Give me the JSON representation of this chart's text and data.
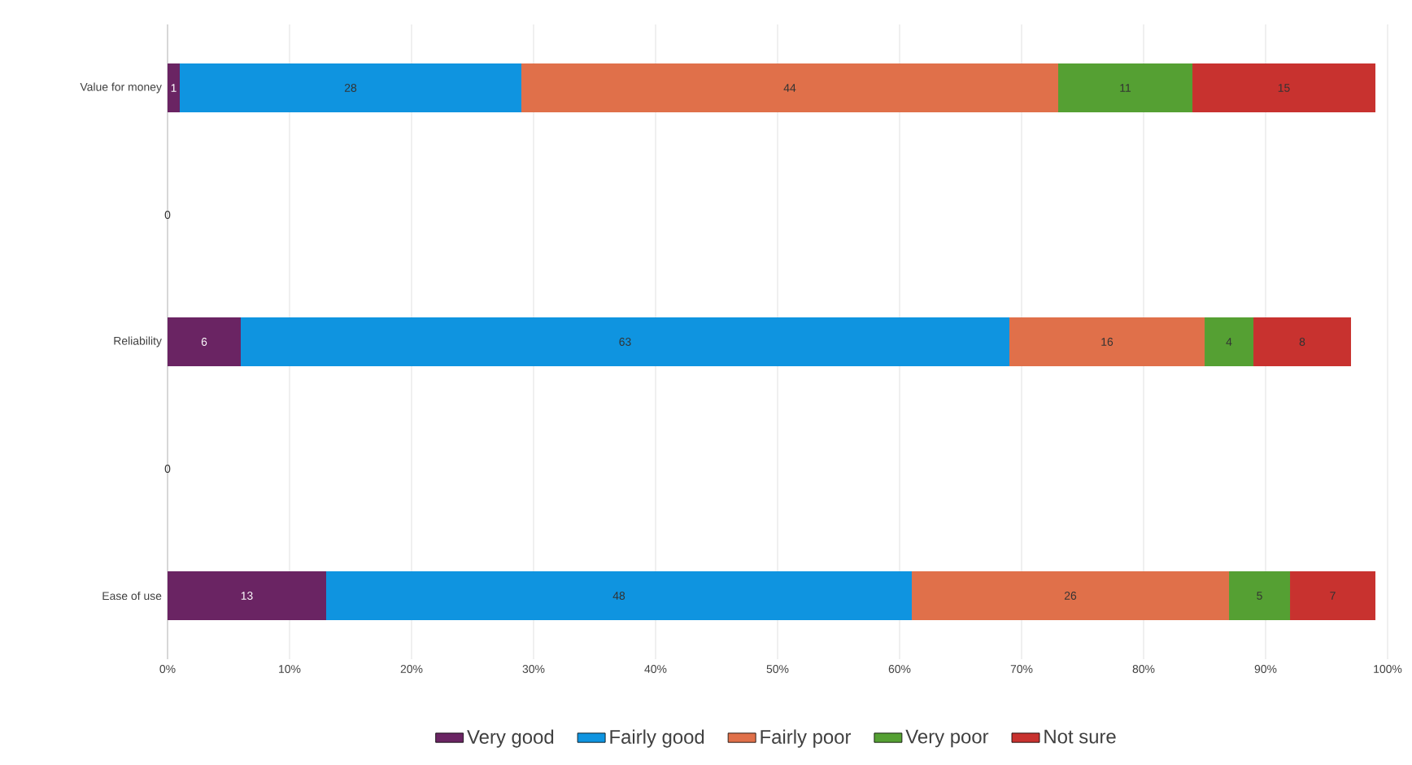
{
  "chart_data": {
    "type": "bar",
    "orientation": "horizontal",
    "stacked": true,
    "categories": [
      "Value for money",
      null,
      "Reliability",
      null,
      "Ease of use"
    ],
    "series": [
      {
        "name": "Very good",
        "color": "#6a2463",
        "values": [
          1,
          0,
          6,
          0,
          13
        ],
        "value_labels": [
          "1",
          "0",
          "6",
          "0",
          "13"
        ]
      },
      {
        "name": "Fairly good",
        "color": "#0f94e0",
        "values": [
          28,
          0,
          63,
          0,
          48
        ],
        "value_labels": [
          "28",
          null,
          "63",
          null,
          "48"
        ]
      },
      {
        "name": "Fairly poor",
        "color": "#e0704a",
        "values": [
          44,
          0,
          16,
          0,
          26
        ],
        "value_labels": [
          "44",
          null,
          "16",
          null,
          "26"
        ]
      },
      {
        "name": "Very poor",
        "color": "#55a033",
        "values": [
          11,
          0,
          4,
          0,
          5
        ],
        "value_labels": [
          "11",
          null,
          "4",
          null,
          "5"
        ]
      },
      {
        "name": "Not sure",
        "color": "#c8322f",
        "values": [
          15,
          0,
          8,
          0,
          7
        ],
        "value_labels": [
          "15",
          null,
          "8",
          null,
          "7"
        ]
      }
    ],
    "xlim": [
      0,
      100
    ],
    "xticks": [
      {
        "value": 0,
        "label": "0%"
      },
      {
        "value": 10,
        "label": "10%"
      },
      {
        "value": 20,
        "label": "20%"
      },
      {
        "value": 30,
        "label": "30%"
      },
      {
        "value": 40,
        "label": "40%"
      },
      {
        "value": 50,
        "label": "50%"
      },
      {
        "value": 60,
        "label": "60%"
      },
      {
        "value": 70,
        "label": "70%"
      },
      {
        "value": 80,
        "label": "80%"
      },
      {
        "value": 90,
        "label": "90%"
      },
      {
        "value": 100,
        "label": "100%"
      }
    ],
    "grid": "x",
    "legend": "bottom"
  }
}
